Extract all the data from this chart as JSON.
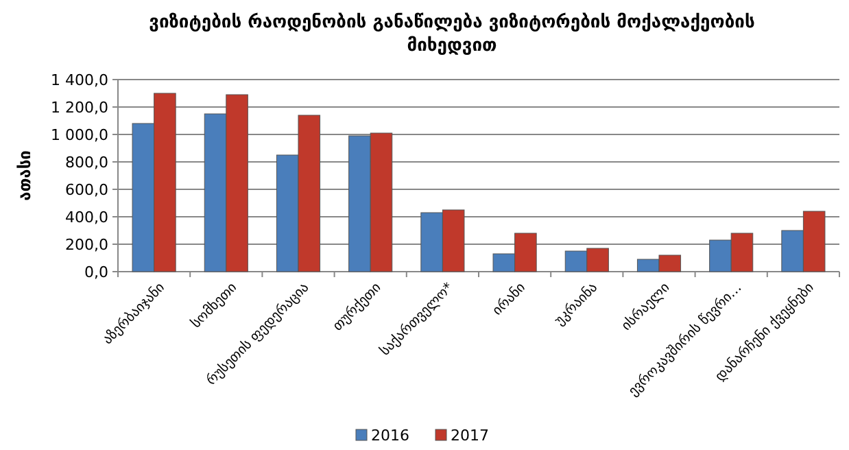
{
  "chart_data": {
    "type": "bar",
    "title": "ვიზიტების რაოდენობის განაწილება ვიზიტორების მოქალაქეობის მიხედვით",
    "ylabel": "ათასი",
    "categories": [
      "აზერბაიჯანი",
      "სომხეთი",
      "რუსეთის ფედერაცია",
      "თურქეთი",
      "საქართველო*",
      "ირანი",
      "უკრაინა",
      "ისრაელი",
      "ევროკავშირის წევრი…",
      "დანარჩენი ქვეყნები"
    ],
    "series": [
      {
        "name": "2016",
        "color": "#4a7ebb",
        "values": [
          1080,
          1150,
          850,
          990,
          430,
          130,
          150,
          90,
          230,
          300
        ]
      },
      {
        "name": "2017",
        "color": "#c0392b",
        "values": [
          1300,
          1290,
          1140,
          1010,
          450,
          280,
          170,
          120,
          280,
          440
        ]
      }
    ],
    "ylim": [
      0,
      1400
    ],
    "yticks": [
      {
        "value": 0,
        "label": "0,0"
      },
      {
        "value": 200,
        "label": "200,0"
      },
      {
        "value": 400,
        "label": "400,0"
      },
      {
        "value": 600,
        "label": "600,0"
      },
      {
        "value": 800,
        "label": "800,0"
      },
      {
        "value": 1000,
        "label": "1 000,0"
      },
      {
        "value": 1200,
        "label": "1 200,0"
      },
      {
        "value": 1400,
        "label": "1 400,0"
      }
    ],
    "grid": "y",
    "legend": "bottom"
  }
}
